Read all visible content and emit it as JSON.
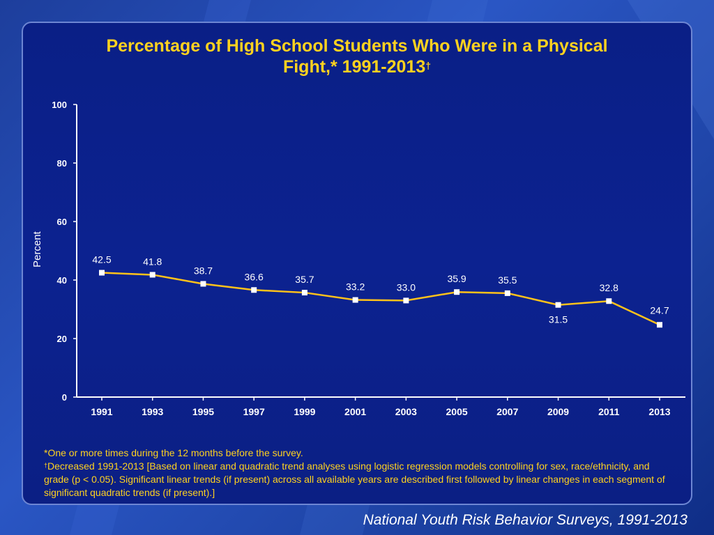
{
  "title": {
    "line1": "Percentage of High School Students Who Were in a Physical",
    "line2": "Fight,* 1991-2013",
    "line2_mark": "†"
  },
  "footnotes": {
    "note1": "*One or more times during the 12 months before the survey.",
    "note2_mark": "†",
    "note2": "Decreased 1991-2013 [Based on linear and quadratic trend analyses using logistic regression models controlling for sex, race/ethnicity, and grade (p < 0.05). Significant linear trends (if present) across all available years are described first followed by linear changes in each segment of significant quadratic trends (if present).]"
  },
  "source": "National Youth Risk Behavior Surveys, 1991-2013",
  "colors": {
    "title": "#ffd21f",
    "line": "#ffc21a",
    "marker": "#ffffff",
    "axis": "#ffffff",
    "text": "#ffffff"
  },
  "chart_data": {
    "type": "line",
    "x": [
      "1991",
      "1993",
      "1995",
      "1997",
      "1999",
      "2001",
      "2003",
      "2005",
      "2007",
      "2009",
      "2011",
      "2013"
    ],
    "series": [
      {
        "values": [
          42.5,
          41.8,
          38.7,
          36.6,
          35.7,
          33.2,
          33.0,
          35.9,
          35.5,
          31.5,
          32.8,
          24.7
        ]
      }
    ],
    "data_labels": [
      "42.5",
      "41.8",
      "38.7",
      "36.6",
      "35.7",
      "33.2",
      "33.0",
      "35.9",
      "35.5",
      "31.5",
      "32.8",
      "24.7"
    ],
    "ylabel": "Percent",
    "ylim": [
      0,
      100
    ],
    "yticks": [
      0,
      20,
      40,
      60,
      80,
      100
    ],
    "grid": false,
    "legend": "none"
  }
}
